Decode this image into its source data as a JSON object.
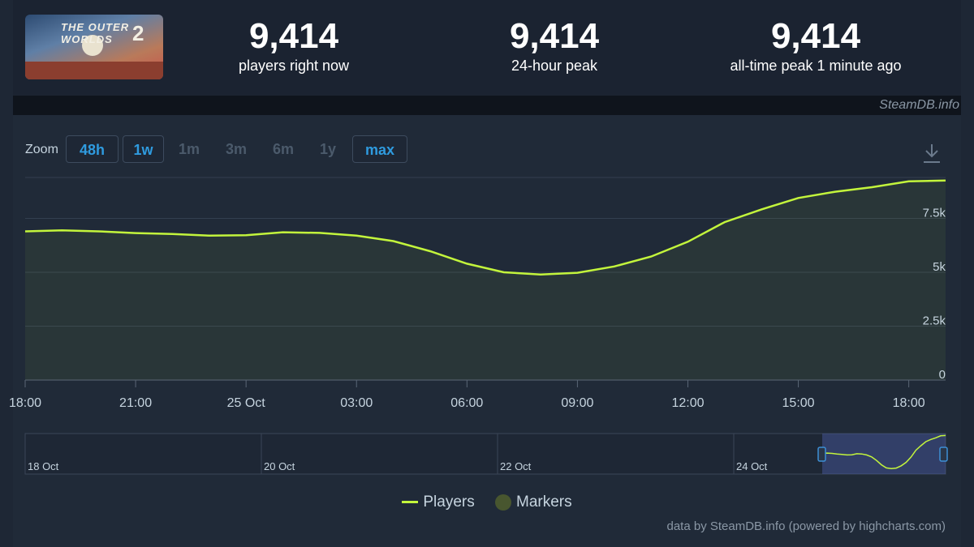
{
  "game": {
    "cover_title": "THE OUTER WORLDS",
    "cover_number": "2"
  },
  "stats": [
    {
      "value": "9,414",
      "label": "players right now"
    },
    {
      "value": "9,414",
      "label": "24-hour peak"
    },
    {
      "value": "9,414",
      "label": "all-time peak 1 minute ago"
    }
  ],
  "credit_top": "SteamDB.info",
  "zoom": {
    "label": "Zoom",
    "buttons": [
      {
        "label": "48h",
        "active": true
      },
      {
        "label": "1w",
        "active": true
      },
      {
        "label": "1m",
        "active": false
      },
      {
        "label": "3m",
        "active": false
      },
      {
        "label": "6m",
        "active": false
      },
      {
        "label": "1y",
        "active": false
      },
      {
        "label": "max",
        "active": true
      }
    ]
  },
  "icons": {
    "download": "download-icon"
  },
  "legend": {
    "players": "Players",
    "markers": "Markers"
  },
  "footer_credit": "data by SteamDB.info (powered by highcharts.com)",
  "colors": {
    "line": "#c3f53c",
    "accent": "#2f9bdf",
    "marker": "#48562f",
    "background": "#1e2735"
  },
  "chart_data": {
    "type": "area",
    "title": "",
    "xlabel": "",
    "ylabel": "",
    "ylim": [
      0,
      9400
    ],
    "y_ticks": [
      0,
      2500,
      5000,
      7500
    ],
    "y_tick_labels": [
      "0",
      "2.5k",
      "5k",
      "7.5k"
    ],
    "x_start_hour": 18,
    "x_end_hour": 43,
    "x_ticks": [
      18,
      21,
      24,
      27,
      30,
      33,
      36,
      39,
      42
    ],
    "x_tick_labels": [
      "18:00",
      "21:00",
      "25 Oct",
      "03:00",
      "06:00",
      "09:00",
      "12:00",
      "15:00",
      "18:00"
    ],
    "series": [
      {
        "name": "Players",
        "x": [
          18,
          19,
          20,
          21,
          22,
          23,
          24,
          25,
          26,
          27,
          28,
          29,
          30,
          31,
          32,
          33,
          34,
          35,
          36,
          37,
          38,
          39,
          40,
          41,
          42,
          43
        ],
        "values": [
          6900,
          6950,
          6900,
          6820,
          6780,
          6700,
          6720,
          6860,
          6830,
          6700,
          6450,
          5980,
          5400,
          5000,
          4900,
          4980,
          5270,
          5730,
          6420,
          7330,
          7920,
          8450,
          8740,
          8950,
          9220,
          9260
        ]
      }
    ],
    "navigator": {
      "labels": [
        "18 Oct",
        "20 Oct",
        "22 Oct",
        "24 Oct"
      ]
    },
    "grid": true,
    "legend_position": "bottom-center"
  }
}
